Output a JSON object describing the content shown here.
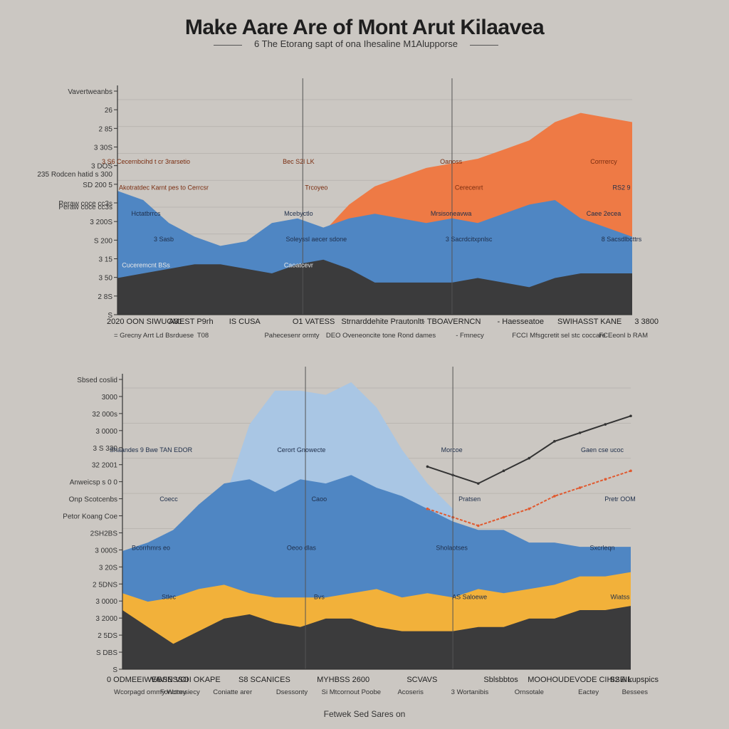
{
  "header": {
    "title": "Make Aare Are of Mont Arut Kilaavea",
    "subtitle": "6 The Etorang sapt of ona Ihesaline M1Alupporse"
  },
  "colors": {
    "background": "#cbc7c2",
    "orange": "#ee7a45",
    "blue": "#4f86c3",
    "lightblue": "#a9c6e4",
    "dark": "#3b3b3c",
    "gold": "#f2b13a",
    "red": "#e05a30"
  },
  "footer": "Fetwek Sed Sares on",
  "chart_data": [
    {
      "type": "area",
      "title": "Top panel",
      "x": [
        0,
        5,
        10,
        15,
        20,
        25,
        30,
        35,
        40,
        45,
        50,
        55,
        60,
        65,
        70,
        75,
        80,
        85,
        90,
        95,
        100
      ],
      "series": [
        {
          "name": "Orange (upper surface)",
          "color": "#ee7a45",
          "values": [
            null,
            null,
            null,
            null,
            null,
            null,
            null,
            null,
            18,
            24,
            28,
            30,
            32,
            33,
            34,
            36,
            38,
            42,
            44,
            43,
            42
          ]
        },
        {
          "name": "Blue (middle layer)",
          "color": "#4f86c3",
          "values": [
            27,
            25,
            20,
            17,
            15,
            16,
            20,
            21,
            19,
            21,
            22,
            21,
            20,
            21,
            20,
            22,
            24,
            25,
            21,
            19,
            17
          ]
        },
        {
          "name": "Dark (base)",
          "color": "#3b3b3c",
          "values": [
            8,
            9,
            10,
            11,
            11,
            10,
            9,
            11,
            12,
            10,
            7,
            7,
            7,
            7,
            8,
            7,
            6,
            8,
            9,
            9,
            9
          ]
        }
      ],
      "y_ticks": [
        "Vavertweanbs",
        "26",
        "2 85",
        "3 30S",
        "3 DOS",
        "SD 200 5",
        "Peraw coce cc3s",
        "3 200S",
        "S 200",
        "3 15",
        "3 50",
        "2 8S",
        "S"
      ],
      "left_labels": [
        "235 Rodcen hatid s 300",
        "Peraw coce cc3s"
      ],
      "annotations": [
        "3 S6 Cecernbcihd t cr 3rarsetio",
        "Bec S2l LK",
        "Oanoss",
        "Corrrercy",
        "Akotratdec Karnt pes to Cerrcsr",
        "Trcoyeo",
        "Cerecenrt",
        "RS2 9",
        "Hctatbrrcs",
        "Mcebyctlo",
        "Mrsisoneavwa",
        "Caee 2ecea",
        "3 Sasb",
        "Soleyssl aecer sdone",
        "3 Sacrdcitxpnlsc",
        "8 Sacsdlbcttrs",
        "Cuceremcnt BSs",
        "Caoatcevr"
      ],
      "x_labels": [
        "2020 OON SIWUOMEST P9rh",
        "A31",
        "IS CUSA",
        "O1 VATESS",
        "Strnarddehite Prautonltt",
        "- TBOAVERNCN",
        "- Haesseatoe",
        "SWIHASST KANE",
        "3 3800"
      ],
      "x_sublabels": [
        "= Grecny Arrt Ld Bsrduese",
        "T08",
        "Pahecesenr ormty",
        "DEO Oveneoncite tone Rond dames",
        "- Fmnecy",
        "FCCI Mfsgcretit sel stc coccare",
        "FCEeonl b RAM"
      ]
    },
    {
      "type": "area",
      "title": "Bottom panel",
      "x": [
        0,
        5,
        10,
        15,
        20,
        25,
        30,
        35,
        40,
        45,
        50,
        55,
        60,
        65,
        70,
        75,
        80,
        85,
        90,
        95,
        100
      ],
      "series": [
        {
          "name": "Light blue (upper dome)",
          "color": "#a9c6e4",
          "values": [
            null,
            null,
            null,
            null,
            40,
            58,
            66,
            66,
            65,
            68,
            62,
            52,
            44,
            38,
            null,
            null,
            null,
            null,
            null,
            null,
            null
          ]
        },
        {
          "name": "Blue (mid layer)",
          "color": "#4f86c3",
          "values": [
            28,
            30,
            33,
            39,
            44,
            45,
            42,
            45,
            44,
            46,
            43,
            41,
            38,
            35,
            33,
            33,
            30,
            30,
            29,
            29,
            29
          ]
        },
        {
          "name": "Gold (band)",
          "color": "#f2b13a",
          "values": [
            18,
            16,
            17,
            19,
            20,
            18,
            17,
            17,
            17,
            18,
            19,
            17,
            18,
            17,
            19,
            18,
            19,
            20,
            22,
            22,
            23
          ]
        },
        {
          "name": "Dark (base)",
          "color": "#3b3b3c",
          "values": [
            14,
            10,
            6,
            9,
            12,
            13,
            11,
            10,
            12,
            12,
            10,
            9,
            9,
            9,
            10,
            10,
            12,
            12,
            14,
            14,
            15
          ]
        },
        {
          "name": "Dark line (trend)",
          "color": "#333333",
          "values": [
            null,
            null,
            null,
            null,
            null,
            null,
            null,
            null,
            null,
            null,
            null,
            null,
            48,
            46,
            44,
            47,
            50,
            54,
            56,
            58,
            60
          ]
        },
        {
          "name": "Red (threshold)",
          "color": "#e05a30",
          "values": [
            null,
            null,
            null,
            null,
            null,
            null,
            null,
            null,
            null,
            null,
            null,
            null,
            38,
            36,
            34,
            36,
            38,
            41,
            43,
            45,
            47
          ]
        }
      ],
      "y_ticks": [
        "Sbsed coslid",
        "3000",
        "32 000s",
        "3 0000",
        "3 S 330",
        "32 2001",
        "Anweicsp s 0 0",
        "Onp Scotcenbs",
        "Petor Koang Coe",
        "2SH2BS",
        "3 000S",
        "3 20S",
        "2 5DNS",
        "3 0000",
        "3 2000",
        "2 5DS",
        "S DBS",
        "S"
      ],
      "annotations": [
        "Shaandes 9 Bwe TAN EDOR",
        "Cerort Gnowecte",
        "Morcoe",
        "Gaen cse ucoc",
        "Coecc",
        "Caoo",
        "Pratsen",
        "Pretr OOM",
        "Bcorrhmrs eo",
        "Oeoo dlas",
        "Sholaotses",
        "Sxcrleqn",
        "Stlec",
        "Bvs",
        "AS Saloewe",
        "Wiatss"
      ],
      "x_labels": [
        "0 ODMEEIWEBSN VOI",
        "VAVIESSOI OKAPE",
        "S8 SCANICES",
        "MYHBSS 2600",
        "SCVAVS",
        "Sblsbbtos",
        "MOOHOUDEVODE CIHISEIL",
        "S2 A kupspics"
      ],
      "x_sublabels": [
        "Wcorpagd ommy Wotmsiecy",
        "Fonctrey",
        "Coniatte arer",
        "Dsessonty",
        "Si Mtcornout Poobe",
        "Acoseris",
        "3 Wortanibis",
        "Ornsotale",
        "Eactey",
        "Bessees"
      ]
    }
  ]
}
